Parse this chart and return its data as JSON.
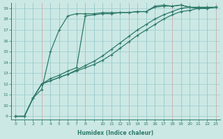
{
  "xlabel": "Humidex (Indice chaleur)",
  "bg_color": "#cce8e4",
  "grid_color": "#99cccc",
  "line_color": "#2d7a6a",
  "xlim": [
    -0.5,
    23.5
  ],
  "ylim": [
    8.7,
    19.5
  ],
  "xtick_vals": [
    0,
    1,
    2,
    3,
    4,
    5,
    6,
    7,
    8,
    9,
    10,
    11,
    12,
    13,
    14,
    15,
    16,
    17,
    18,
    19,
    20,
    21,
    22,
    23
  ],
  "xtick_labels": [
    "0",
    "1",
    "2",
    "3",
    "4",
    "5",
    "6",
    "7",
    "8",
    "",
    "10",
    "11",
    "12",
    "13",
    "14",
    "15",
    "16",
    "17",
    "18",
    "19",
    "20",
    "21",
    "22",
    "23"
  ],
  "yticks": [
    9,
    10,
    11,
    12,
    13,
    14,
    15,
    16,
    17,
    18,
    19
  ],
  "series": [
    {
      "x": [
        0,
        1,
        2,
        3,
        4,
        5,
        6,
        7,
        8,
        9,
        10,
        11,
        12,
        13,
        14,
        15,
        16,
        17,
        18,
        19,
        20,
        21,
        22,
        23
      ],
      "y": [
        9,
        9,
        10.7,
        11.5,
        15.0,
        17.0,
        18.3,
        18.5,
        18.5,
        18.5,
        18.6,
        18.6,
        18.6,
        18.6,
        18.7,
        18.7,
        19.2,
        19.3,
        19.2,
        19.3,
        19.1,
        19.0,
        19.0,
        19.1
      ]
    },
    {
      "x": [
        0,
        1,
        2,
        3,
        4,
        5,
        6,
        7,
        8,
        9,
        10,
        11,
        12,
        13,
        14,
        15,
        16,
        17,
        18,
        19,
        20,
        21,
        22,
        23
      ],
      "y": [
        9,
        9,
        10.7,
        12.0,
        12.5,
        12.8,
        13.2,
        13.5,
        18.3,
        18.4,
        18.5,
        18.5,
        18.6,
        18.6,
        18.7,
        18.7,
        19.1,
        19.2,
        19.2,
        19.3,
        19.1,
        19.0,
        19.0,
        19.1
      ]
    },
    {
      "x": [
        0,
        1,
        2,
        3,
        4,
        5,
        6,
        7,
        8,
        9,
        10,
        11,
        12,
        13,
        14,
        15,
        16,
        17,
        18,
        19,
        20,
        21,
        22,
        23
      ],
      "y": [
        9,
        9,
        10.7,
        12.0,
        12.3,
        12.6,
        12.9,
        13.2,
        13.5,
        13.8,
        14.2,
        14.7,
        15.3,
        15.9,
        16.5,
        17.0,
        17.5,
        18.0,
        18.4,
        18.7,
        18.8,
        19.0,
        19.0,
        19.1
      ]
    },
    {
      "x": [
        0,
        1,
        2,
        3,
        4,
        5,
        6,
        7,
        8,
        9,
        10,
        11,
        12,
        13,
        14,
        15,
        16,
        17,
        18,
        19,
        20,
        21,
        22,
        23
      ],
      "y": [
        9,
        9,
        10.7,
        12.0,
        12.3,
        12.6,
        12.9,
        13.3,
        13.7,
        14.1,
        14.6,
        15.2,
        15.8,
        16.4,
        17.0,
        17.5,
        18.0,
        18.4,
        18.7,
        19.0,
        19.1,
        19.1,
        19.1,
        19.1
      ]
    }
  ]
}
